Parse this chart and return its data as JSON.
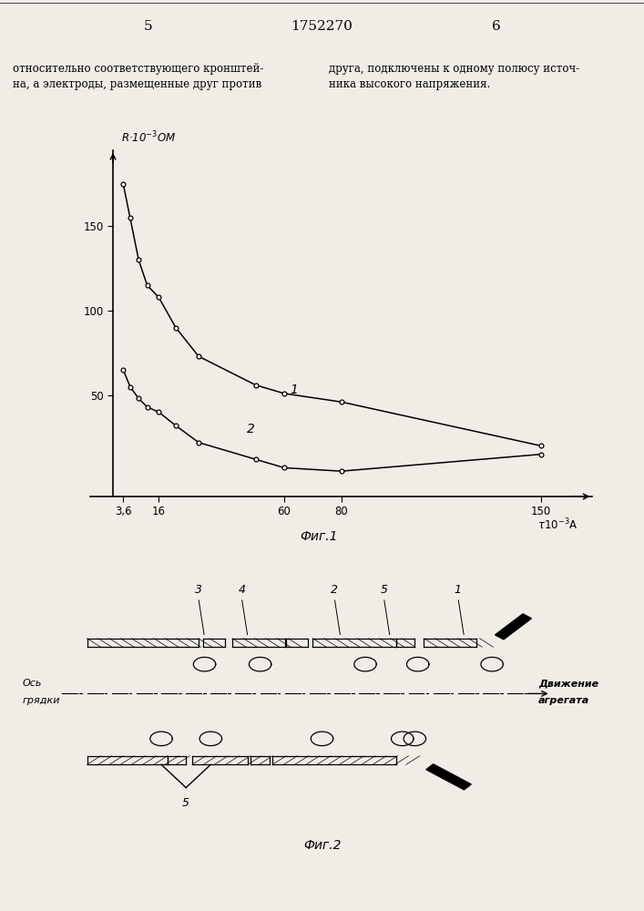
{
  "page_number_left": "5",
  "page_number_center": "1752270",
  "page_number_right": "6",
  "header_text_left": "относительно соответствующего кронштей-\nна, а электроды, размещенные друг против",
  "header_text_right": "друга, подключены к одному полюсу источ-\nника высокого напряжения.",
  "fig1_title": "Фиг.1",
  "fig2_title": "Фиг.2",
  "curve1_x": [
    3.6,
    6,
    9,
    12,
    16,
    22,
    30,
    50,
    60,
    80,
    150
  ],
  "curve1_y": [
    175,
    155,
    130,
    115,
    108,
    90,
    73,
    56,
    51,
    46,
    20
  ],
  "curve2_x": [
    3.6,
    6,
    9,
    12,
    16,
    22,
    30,
    50,
    60,
    80,
    150
  ],
  "curve2_y": [
    65,
    55,
    48,
    43,
    40,
    32,
    22,
    12,
    7,
    5,
    15
  ],
  "label1": "1",
  "label2": "2",
  "bg_color": "#f0ede6",
  "line_color": "#000000",
  "xtick_positions": [
    3.6,
    16,
    60,
    80,
    150
  ],
  "xtick_labels": [
    "3,6",
    "16",
    "60",
    "80",
    "150"
  ],
  "ytick_positions": [
    50,
    100,
    150
  ],
  "ytick_labels": [
    "50",
    "100",
    "150"
  ],
  "xlim": [
    -8,
    168
  ],
  "ylim": [
    -10,
    195
  ]
}
